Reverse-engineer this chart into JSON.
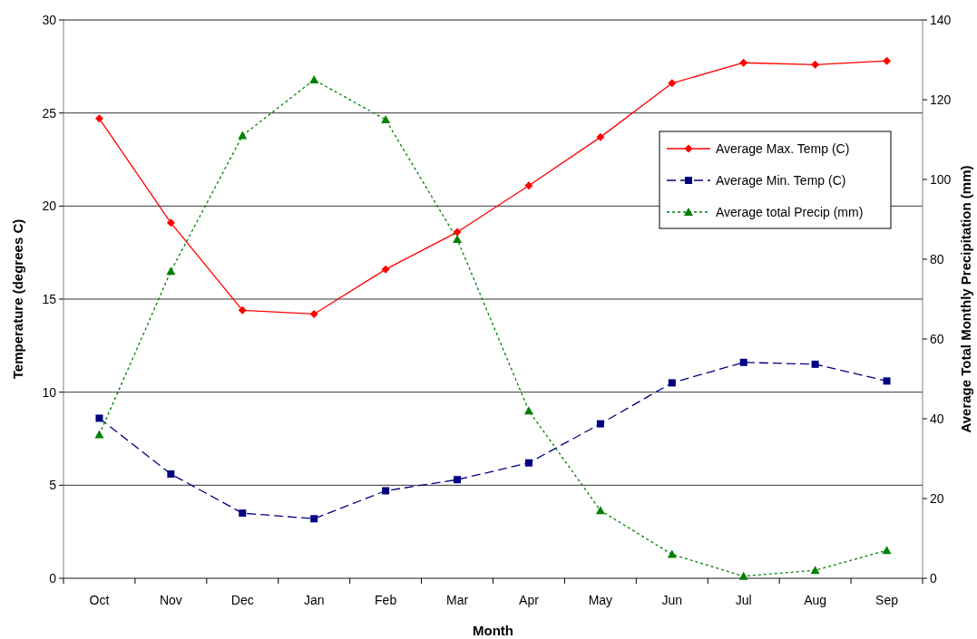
{
  "chart_data": {
    "type": "line",
    "xlabel": "Month",
    "ylabel": "Temperature (degrees C)",
    "y2label": "Average Total Monthly Precipitation (mm)",
    "categories": [
      "Oct",
      "Nov",
      "Dec",
      "Jan",
      "Feb",
      "Mar",
      "Apr",
      "May",
      "Jun",
      "Jul",
      "Aug",
      "Sep"
    ],
    "series": [
      {
        "name": "Average Max. Temp (C)",
        "color": "#ff0000",
        "marker": "diamond",
        "line_style": "solid",
        "values": [
          24.7,
          19.1,
          14.4,
          14.2,
          16.6,
          18.6,
          21.1,
          23.7,
          26.6,
          27.7,
          27.6,
          27.8
        ]
      },
      {
        "name": "Average Min. Temp (C)",
        "color": "#000080",
        "marker": "square",
        "line_style": "dashed",
        "values": [
          8.6,
          5.6,
          3.5,
          3.2,
          4.7,
          5.3,
          6.2,
          8.3,
          10.5,
          11.6,
          11.5,
          10.6
        ]
      },
      {
        "name": "Average total Precip (mm)",
        "color": "#008000",
        "marker": "triangle",
        "line_style": "dotted",
        "axis": "y2",
        "values": [
          36,
          77,
          111,
          125,
          115,
          85,
          42,
          17,
          6,
          0.5,
          2,
          7
        ]
      }
    ],
    "ylim": [
      0,
      30
    ],
    "yticks": [
      0,
      5,
      10,
      15,
      20,
      25,
      30
    ],
    "y2lim": [
      0,
      140
    ],
    "y2ticks": [
      0,
      20,
      40,
      60,
      80,
      100,
      120,
      140
    ],
    "grid": "y",
    "legend": "top right"
  }
}
